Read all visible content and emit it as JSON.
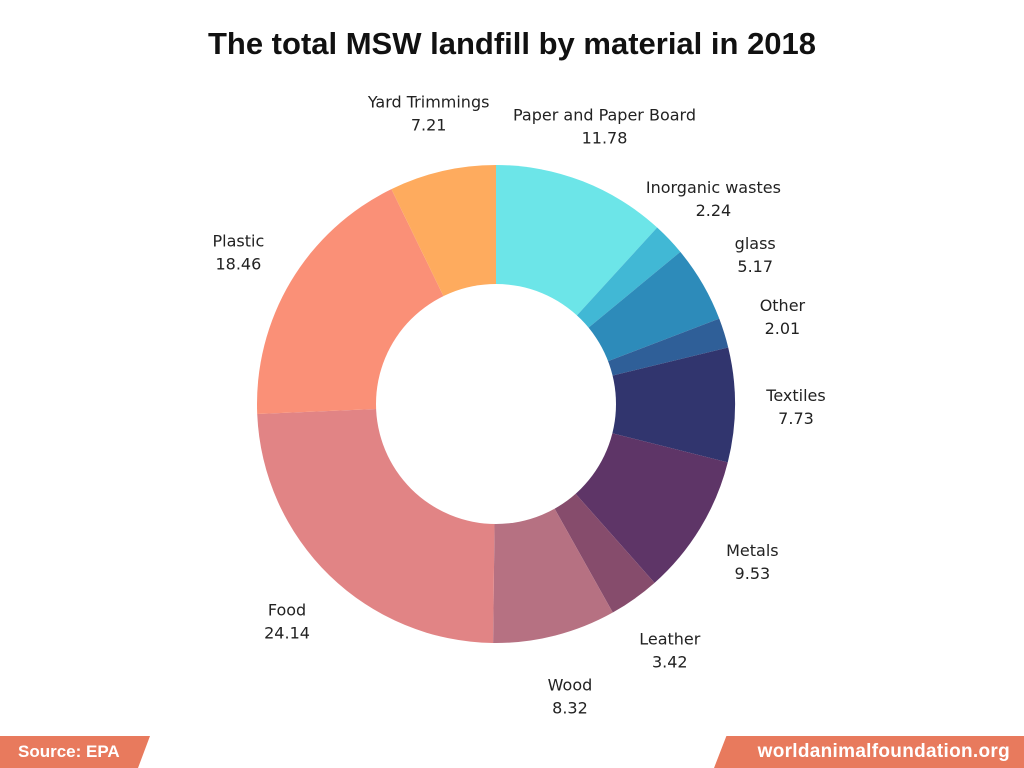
{
  "chart_data": {
    "type": "pie",
    "title": "The total MSW landfill by material in 2018",
    "slices": [
      {
        "label": "Paper and Paper Board",
        "value": 11.78,
        "color": "#6ce5e8"
      },
      {
        "label": "Inorganic wastes",
        "value": 2.24,
        "color": "#41b8d5"
      },
      {
        "label": "glass",
        "value": 5.17,
        "color": "#2d8bba"
      },
      {
        "label": "Other",
        "value": 2.01,
        "color": "#2f5f98"
      },
      {
        "label": "Textiles",
        "value": 7.73,
        "color": "#31356e"
      },
      {
        "label": "Metals",
        "value": 9.53,
        "color": "#5e3567"
      },
      {
        "label": "Leather",
        "value": 3.42,
        "color": "#864c6c"
      },
      {
        "label": "Wood",
        "value": 8.32,
        "color": "#b67182"
      },
      {
        "label": "Food",
        "value": 24.14,
        "color": "#e18485"
      },
      {
        "label": "Plastic",
        "value": 18.46,
        "color": "#fa9077"
      },
      {
        "label": "Yard Trimmings",
        "value": 7.21,
        "color": "#feab5e"
      }
    ],
    "start_angle": "top",
    "direction": "clockwise",
    "donut": true
  },
  "footer": {
    "source": "Source: EPA",
    "site": "worldanimalfoundation.org",
    "badge_color": "#e87a5d"
  }
}
